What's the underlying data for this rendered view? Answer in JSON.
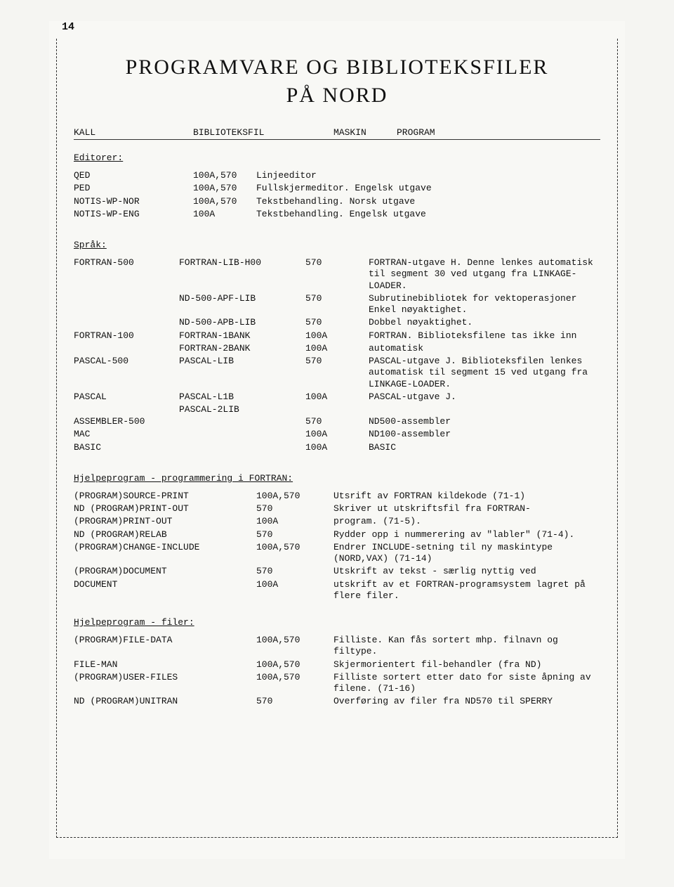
{
  "page_number": "14",
  "title_line1": "PROGRAMVARE OG BIBLIOTEKSFILER",
  "title_line2": "PÅ NORD",
  "headers": {
    "c1": "KALL",
    "c2": "BIBLIOTEKSFIL",
    "c3": "MASKIN",
    "c4": "PROGRAM"
  },
  "sections": {
    "editorer": {
      "heading": "Editorer:",
      "rows": [
        {
          "kall": "QED",
          "maskin": "100A,570",
          "program": "Linjeeditor"
        },
        {
          "kall": "PED",
          "maskin": "100A,570",
          "program": "Fullskjermeditor. Engelsk utgave"
        },
        {
          "kall": "NOTIS-WP-NOR",
          "maskin": "100A,570",
          "program": "Tekstbehandling. Norsk utgave"
        },
        {
          "kall": "NOTIS-WP-ENG",
          "maskin": "100A",
          "program": "Tekstbehandling. Engelsk utgave"
        }
      ]
    },
    "sprak": {
      "heading": "Språk:",
      "rows": [
        {
          "kall": "FORTRAN-500",
          "lib": "FORTRAN-LIB-H00",
          "maskin": "570",
          "program": "FORTRAN-utgave H. Denne lenkes automatisk til segment 30 ved utgang fra LINKAGE-LOADER."
        },
        {
          "kall": "",
          "lib": "ND-500-APF-LIB",
          "maskin": "570",
          "program": "Subrutinebibliotek for vektoperasjoner Enkel nøyaktighet."
        },
        {
          "kall": "",
          "lib": "ND-500-APB-LIB",
          "maskin": "570",
          "program": "Dobbel nøyaktighet."
        },
        {
          "kall": "FORTRAN-100",
          "lib": "FORTRAN-1BANK",
          "maskin": "100A",
          "program": "FORTRAN. Biblioteksfilene tas ikke inn"
        },
        {
          "kall": "",
          "lib": "FORTRAN-2BANK",
          "maskin": "100A",
          "program": "automatisk"
        },
        {
          "kall": "PASCAL-500",
          "lib": "PASCAL-LIB",
          "maskin": "570",
          "program": "PASCAL-utgave J. Biblioteksfilen lenkes automatisk til segment 15 ved utgang fra LINKAGE-LOADER."
        },
        {
          "kall": "PASCAL",
          "lib": "PASCAL-L1B",
          "maskin": "100A",
          "program": "PASCAL-utgave J."
        },
        {
          "kall": "",
          "lib": "PASCAL-2LIB",
          "maskin": "",
          "program": ""
        },
        {
          "kall": "ASSEMBLER-500",
          "lib": "",
          "maskin": "570",
          "program": "ND500-assembler"
        },
        {
          "kall": "MAC",
          "lib": "",
          "maskin": "100A",
          "program": "ND100-assembler"
        },
        {
          "kall": "BASIC",
          "lib": "",
          "maskin": "100A",
          "program": "BASIC"
        }
      ]
    },
    "hjelp_fortran": {
      "heading": "Hjelpeprogram - programmering i FORTRAN:",
      "rows": [
        {
          "kall": "(PROGRAM)SOURCE-PRINT",
          "maskin": "100A,570",
          "program": "Utsrift av FORTRAN kildekode (71-1)"
        },
        {
          "kall": "ND (PROGRAM)PRINT-OUT",
          "maskin": "570",
          "program": "Skriver ut utskriftsfil fra FORTRAN-"
        },
        {
          "kall": "(PROGRAM)PRINT-OUT",
          "maskin": "100A",
          "program": "program. (71-5)."
        },
        {
          "kall": "ND (PROGRAM)RELAB",
          "maskin": "570",
          "program": "Rydder opp i nummerering av \"labler\" (71-4)."
        },
        {
          "kall": "(PROGRAM)CHANGE-INCLUDE",
          "maskin": "100A,570",
          "program": "Endrer INCLUDE-setning til ny maskintype (NORD,VAX) (71-14)"
        },
        {
          "kall": "(PROGRAM)DOCUMENT",
          "maskin": "570",
          "program": "Utskrift av tekst - særlig nyttig ved"
        },
        {
          "kall": "DOCUMENT",
          "maskin": "100A",
          "program": "utskrift av et FORTRAN-programsystem lagret på flere filer."
        }
      ]
    },
    "hjelp_filer": {
      "heading": "Hjelpeprogram - filer:",
      "rows": [
        {
          "kall": "(PROGRAM)FILE-DATA",
          "maskin": "100A,570",
          "program": "Filliste. Kan fås sortert mhp. filnavn og filtype."
        },
        {
          "kall": "FILE-MAN",
          "maskin": "100A,570",
          "program": "Skjermorientert fil-behandler (fra ND)"
        },
        {
          "kall": "(PROGRAM)USER-FILES",
          "maskin": "100A,570",
          "program": "Filliste sortert etter dato for siste åpning av filene. (71-16)"
        },
        {
          "kall": "ND (PROGRAM)UNITRAN",
          "maskin": "570",
          "program": "Overføring av filer fra ND570 til SPERRY"
        }
      ]
    }
  }
}
